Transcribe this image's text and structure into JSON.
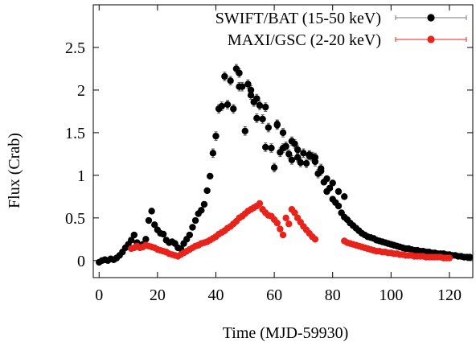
{
  "chart_data": {
    "type": "scatter",
    "xlabel": "Time (MJD-59930)",
    "ylabel": "Flux (Crab)",
    "xlim": [
      -2,
      128
    ],
    "ylim": [
      -0.2,
      3.0
    ],
    "xticks": [
      0,
      20,
      40,
      60,
      80,
      100,
      120
    ],
    "yticks": [
      0,
      0.5,
      1,
      1.5,
      2,
      2.5
    ],
    "xtick_labels": [
      "0",
      "20",
      "40",
      "60",
      "80",
      "100",
      "120"
    ],
    "ytick_labels": [
      "0",
      "0.5",
      "1",
      "1.5",
      "2",
      "2.5"
    ],
    "legend_position": "top-right",
    "grid": false,
    "series": [
      {
        "name": "SWIFT/BAT (15-50 keV)",
        "color": "#000000",
        "points": [
          [
            0,
            -0.02
          ],
          [
            1,
            0.0
          ],
          [
            2,
            0.01
          ],
          [
            3,
            0.0
          ],
          [
            4,
            0.02
          ],
          [
            5,
            0.01
          ],
          [
            6,
            0.03
          ],
          [
            7,
            0.06
          ],
          [
            8,
            0.1
          ],
          [
            9,
            0.15
          ],
          [
            10,
            0.19
          ],
          [
            11,
            0.24
          ],
          [
            12,
            0.3
          ],
          [
            13,
            0.21
          ],
          [
            14,
            0.17
          ],
          [
            15,
            0.19
          ],
          [
            16,
            0.25
          ],
          [
            17,
            0.47
          ],
          [
            18,
            0.58
          ],
          [
            19,
            0.42
          ],
          [
            20,
            0.36
          ],
          [
            21,
            0.32
          ],
          [
            22,
            0.31
          ],
          [
            23,
            0.24
          ],
          [
            24,
            0.21
          ],
          [
            25,
            0.22
          ],
          [
            26,
            0.2
          ],
          [
            27,
            0.15
          ],
          [
            28,
            0.14
          ],
          [
            29,
            0.2
          ],
          [
            30,
            0.25
          ],
          [
            31,
            0.3
          ],
          [
            32,
            0.39
          ],
          [
            33,
            0.47
          ],
          [
            34,
            0.55
          ],
          [
            35,
            0.59
          ],
          [
            36,
            0.66
          ],
          [
            37,
            0.82
          ],
          [
            38,
            0.99
          ],
          [
            39,
            1.26
          ],
          [
            40,
            1.46
          ],
          [
            41,
            1.78
          ],
          [
            42,
            1.81
          ],
          [
            43,
            2.16
          ],
          [
            44,
            1.83
          ],
          [
            45,
            2.11
          ],
          [
            46,
            1.78
          ],
          [
            47,
            2.25
          ],
          [
            48,
            2.04
          ],
          [
            49,
            2.04
          ],
          [
            50,
            1.52
          ],
          [
            51,
            2.07
          ],
          [
            52,
            1.94
          ],
          [
            53,
            1.86
          ],
          [
            54,
            1.67
          ],
          [
            55,
            1.82
          ],
          [
            56,
            1.66
          ],
          [
            57,
            1.33
          ],
          [
            58,
            1.56
          ],
          [
            59,
            1.32
          ],
          [
            60,
            1.09
          ],
          [
            61,
            1.59
          ],
          [
            62,
            1.27
          ],
          [
            63,
            1.32
          ],
          [
            64,
            1.34
          ],
          [
            65,
            1.25
          ],
          [
            66,
            1.18
          ],
          [
            67,
            1.37
          ],
          [
            68,
            1.21
          ],
          [
            69,
            1.15
          ],
          [
            70,
            1.26
          ],
          [
            71,
            1.14
          ],
          [
            72,
            1.23
          ],
          [
            73,
            1.22
          ],
          [
            74,
            1.21
          ],
          [
            75,
            1.02
          ],
          [
            76,
            1.05
          ],
          [
            77,
            0.92
          ],
          [
            78,
            0.81
          ],
          [
            79,
            0.85
          ],
          [
            80,
            0.72
          ],
          [
            81,
            0.68
          ],
          [
            82,
            0.64
          ],
          [
            83,
            0.56
          ],
          [
            84,
            0.51
          ],
          [
            85,
            0.48
          ],
          [
            86,
            0.44
          ],
          [
            87,
            0.41
          ],
          [
            88,
            0.38
          ],
          [
            89,
            0.35
          ],
          [
            90,
            0.32
          ],
          [
            91,
            0.3
          ],
          [
            92,
            0.28
          ],
          [
            93,
            0.27
          ],
          [
            94,
            0.26
          ],
          [
            95,
            0.24
          ],
          [
            96,
            0.23
          ],
          [
            97,
            0.22
          ],
          [
            98,
            0.21
          ],
          [
            99,
            0.2
          ],
          [
            100,
            0.19
          ],
          [
            101,
            0.18
          ],
          [
            102,
            0.17
          ],
          [
            103,
            0.16
          ],
          [
            104,
            0.15
          ],
          [
            105,
            0.14
          ],
          [
            106,
            0.14
          ],
          [
            107,
            0.13
          ],
          [
            108,
            0.12
          ],
          [
            109,
            0.12
          ],
          [
            110,
            0.11
          ],
          [
            111,
            0.11
          ],
          [
            112,
            0.1
          ],
          [
            113,
            0.1
          ],
          [
            114,
            0.09
          ],
          [
            115,
            0.09
          ],
          [
            116,
            0.08
          ],
          [
            117,
            0.08
          ],
          [
            118,
            0.08
          ],
          [
            119,
            0.07
          ],
          [
            120,
            0.07
          ],
          [
            121,
            0.06
          ],
          [
            122,
            0.06
          ],
          [
            123,
            0.05
          ],
          [
            124,
            0.05
          ],
          [
            125,
            0.04
          ],
          [
            126,
            0.04
          ],
          [
            127,
            0.04
          ],
          [
            48,
            2.2
          ],
          [
            52,
            2.0
          ],
          [
            54,
            1.9
          ],
          [
            57,
            1.8
          ],
          [
            61,
            1.6
          ],
          [
            63,
            1.5
          ],
          [
            66,
            1.4
          ],
          [
            68,
            1.3
          ],
          [
            72,
            1.24
          ],
          [
            74,
            1.16
          ],
          [
            76,
            1.08
          ],
          [
            78,
            0.96
          ],
          [
            80,
            0.91
          ],
          [
            82,
            0.81
          ],
          [
            84,
            0.75
          ]
        ]
      },
      {
        "name": "MAXI/GSC (2-20 keV)",
        "color": "#e8231b",
        "points": [
          [
            11,
            0.14
          ],
          [
            12,
            0.15
          ],
          [
            13,
            0.17
          ],
          [
            14,
            0.15
          ],
          [
            15,
            0.16
          ],
          [
            16,
            0.18
          ],
          [
            17,
            0.17
          ],
          [
            18,
            0.16
          ],
          [
            19,
            0.15
          ],
          [
            20,
            0.13
          ],
          [
            21,
            0.12
          ],
          [
            22,
            0.11
          ],
          [
            23,
            0.1
          ],
          [
            24,
            0.08
          ],
          [
            25,
            0.07
          ],
          [
            26,
            0.06
          ],
          [
            27,
            0.05
          ],
          [
            28,
            0.07
          ],
          [
            29,
            0.09
          ],
          [
            30,
            0.11
          ],
          [
            31,
            0.13
          ],
          [
            32,
            0.15
          ],
          [
            33,
            0.17
          ],
          [
            34,
            0.18
          ],
          [
            35,
            0.2
          ],
          [
            36,
            0.21
          ],
          [
            37,
            0.22
          ],
          [
            38,
            0.24
          ],
          [
            39,
            0.26
          ],
          [
            40,
            0.28
          ],
          [
            41,
            0.31
          ],
          [
            42,
            0.33
          ],
          [
            43,
            0.35
          ],
          [
            44,
            0.38
          ],
          [
            45,
            0.4
          ],
          [
            46,
            0.43
          ],
          [
            47,
            0.46
          ],
          [
            48,
            0.5
          ],
          [
            49,
            0.52
          ],
          [
            50,
            0.55
          ],
          [
            51,
            0.58
          ],
          [
            52,
            0.6
          ],
          [
            53,
            0.62
          ],
          [
            54,
            0.64
          ],
          [
            55,
            0.67
          ],
          [
            56,
            0.6
          ],
          [
            57,
            0.56
          ],
          [
            58,
            0.53
          ],
          [
            59,
            0.52
          ],
          [
            60,
            0.48
          ],
          [
            61,
            0.44
          ],
          [
            62,
            0.37
          ],
          [
            63,
            0.3
          ],
          [
            64,
            0.5
          ],
          [
            65,
            0.43
          ],
          [
            66,
            0.6
          ],
          [
            67,
            0.56
          ],
          [
            68,
            0.5
          ],
          [
            69,
            0.45
          ],
          [
            70,
            0.4
          ],
          [
            71,
            0.36
          ],
          [
            72,
            0.32
          ],
          [
            73,
            0.28
          ],
          [
            74,
            0.25
          ],
          [
            84,
            0.23
          ],
          [
            85,
            0.21
          ],
          [
            86,
            0.2
          ],
          [
            87,
            0.19
          ],
          [
            88,
            0.18
          ],
          [
            89,
            0.17
          ],
          [
            90,
            0.16
          ],
          [
            91,
            0.15
          ],
          [
            92,
            0.14
          ],
          [
            93,
            0.13
          ],
          [
            94,
            0.12
          ],
          [
            95,
            0.11
          ],
          [
            96,
            0.11
          ],
          [
            97,
            0.1
          ],
          [
            98,
            0.1
          ],
          [
            99,
            0.09
          ],
          [
            100,
            0.09
          ],
          [
            101,
            0.08
          ],
          [
            102,
            0.08
          ],
          [
            103,
            0.07
          ],
          [
            104,
            0.07
          ],
          [
            105,
            0.06
          ],
          [
            106,
            0.06
          ],
          [
            107,
            0.06
          ],
          [
            108,
            0.05
          ],
          [
            109,
            0.05
          ],
          [
            110,
            0.05
          ],
          [
            111,
            0.05
          ],
          [
            112,
            0.04
          ],
          [
            113,
            0.04
          ],
          [
            114,
            0.04
          ],
          [
            115,
            0.04
          ],
          [
            116,
            0.04
          ],
          [
            117,
            0.04
          ],
          [
            118,
            0.03
          ],
          [
            119,
            0.03
          ],
          [
            120,
            0.03
          ]
        ]
      }
    ]
  }
}
